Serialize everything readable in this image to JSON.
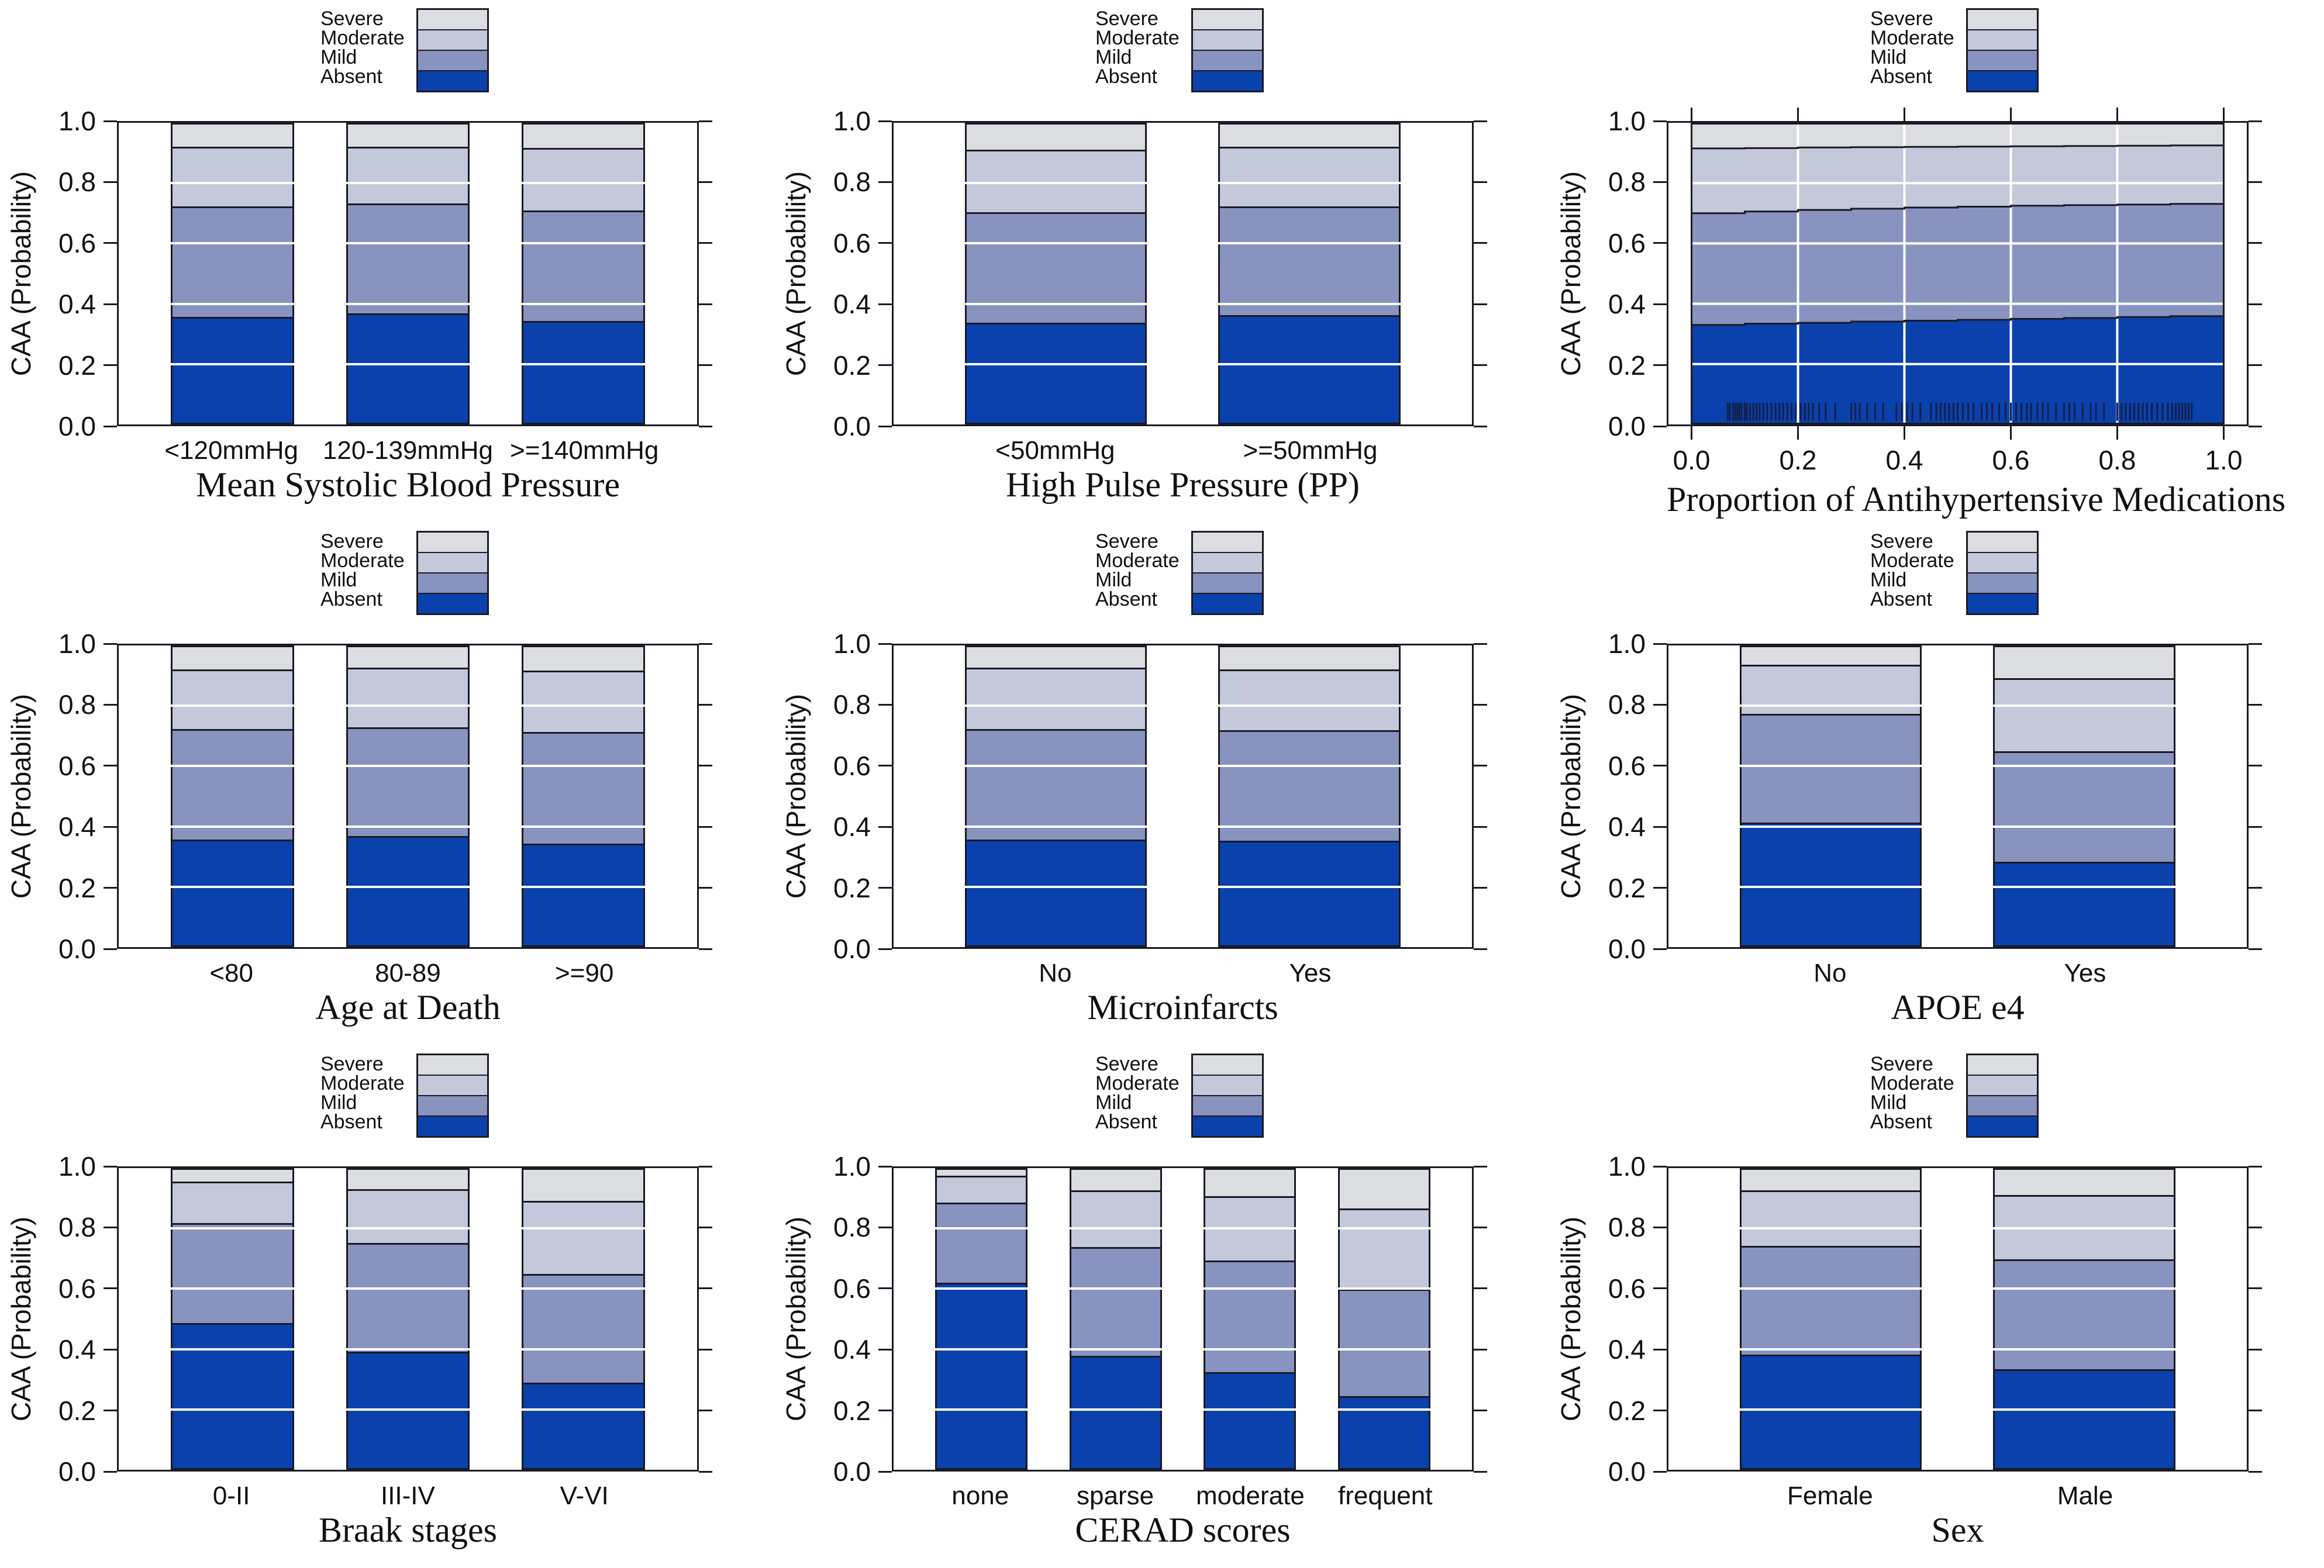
{
  "legend": {
    "labels": [
      "Severe",
      "Moderate",
      "Mild",
      "Absent"
    ]
  },
  "colors": {
    "severe": "#dcdde0",
    "moderate": "#c4c8db",
    "mild": "#8893c0",
    "absent": "#0a41ac",
    "line": "#1a1a24",
    "grid": "#ffffff",
    "rug": "#13204a"
  },
  "y_axis": {
    "label": "CAA (Probability)",
    "tick_labels": [
      "0.0",
      "0.2",
      "0.4",
      "0.6",
      "0.8",
      "1.0"
    ]
  },
  "chart_data": [
    {
      "type": "bar",
      "title": "Mean Systolic Blood Pressure",
      "xlabel": "Mean Systolic Blood Pressure",
      "ylabel": "CAA (Probability)",
      "ylim": [
        0,
        1
      ],
      "series_bottom_to_top": [
        "Absent",
        "Mild",
        "Moderate",
        "Severe"
      ],
      "categories": [
        "<120mmHg",
        "120-139mmHg",
        ">=140mmHg"
      ],
      "cumulative": [
        [
          0.35,
          0.72,
          0.92,
          1.0
        ],
        [
          0.36,
          0.73,
          0.92,
          1.0
        ],
        [
          0.335,
          0.705,
          0.915,
          1.0
        ]
      ]
    },
    {
      "type": "bar",
      "title": "High Pulse Pressure (PP)",
      "xlabel": "High Pulse Pressure (PP)",
      "ylabel": "CAA (Probability)",
      "ylim": [
        0,
        1
      ],
      "series_bottom_to_top": [
        "Absent",
        "Mild",
        "Moderate",
        "Severe"
      ],
      "categories": [
        "<50mmHg",
        ">=50mmHg"
      ],
      "cumulative": [
        [
          0.33,
          0.7,
          0.91,
          1.0
        ],
        [
          0.355,
          0.72,
          0.92,
          1.0
        ]
      ]
    },
    {
      "type": "area",
      "title": "Proportion of Antihypertensive Medications",
      "xlabel": "Proportion of Antihypertensive Medications",
      "ylabel": "CAA (Probability)",
      "ylim": [
        0,
        1
      ],
      "xlim": [
        0,
        1
      ],
      "series_bottom_to_top": [
        "Absent",
        "Mild",
        "Moderate",
        "Severe"
      ],
      "x_tick_labels": [
        "0.0",
        "0.2",
        "0.4",
        "0.6",
        "0.8",
        "1.0"
      ],
      "x": [
        0,
        0.1,
        0.2,
        0.3,
        0.4,
        0.5,
        0.6,
        0.7,
        0.8,
        0.9,
        1.0
      ],
      "absent_top": [
        0.33,
        0.334,
        0.337,
        0.341,
        0.344,
        0.347,
        0.35,
        0.353,
        0.356,
        0.359,
        0.362
      ],
      "mild_top": [
        0.7,
        0.706,
        0.711,
        0.715,
        0.719,
        0.722,
        0.725,
        0.727,
        0.729,
        0.731,
        0.733
      ],
      "moderate_top": [
        0.915,
        0.916,
        0.918,
        0.919,
        0.92,
        0.921,
        0.922,
        0.923,
        0.924,
        0.925,
        0.926
      ],
      "rug_x": [
        0.068,
        0.072,
        0.078,
        0.082,
        0.086,
        0.09,
        0.094,
        0.1,
        0.104,
        0.11,
        0.116,
        0.122,
        0.128,
        0.135,
        0.142,
        0.15,
        0.158,
        0.165,
        0.172,
        0.18,
        0.188,
        0.196,
        0.205,
        0.213,
        0.22,
        0.228,
        0.24,
        0.252,
        0.27,
        0.3,
        0.308,
        0.316,
        0.33,
        0.345,
        0.36,
        0.385,
        0.395,
        0.405,
        0.415,
        0.43,
        0.45,
        0.46,
        0.468,
        0.476,
        0.484,
        0.492,
        0.5,
        0.51,
        0.52,
        0.53,
        0.545,
        0.555,
        0.565,
        0.578,
        0.59,
        0.6,
        0.61,
        0.62,
        0.63,
        0.638,
        0.65,
        0.66,
        0.67,
        0.685,
        0.7,
        0.71,
        0.72,
        0.735,
        0.75,
        0.76,
        0.775,
        0.8,
        0.808,
        0.816,
        0.824,
        0.832,
        0.84,
        0.848,
        0.856,
        0.865,
        0.875,
        0.885,
        0.895,
        0.903,
        0.91,
        0.916,
        0.922,
        0.928,
        0.934,
        0.94
      ]
    },
    {
      "type": "bar",
      "title": "Age at Death",
      "xlabel": "Age at Death",
      "ylabel": "CAA (Probability)",
      "ylim": [
        0,
        1
      ],
      "series_bottom_to_top": [
        "Absent",
        "Mild",
        "Moderate",
        "Severe"
      ],
      "categories": [
        "<80",
        "80-89",
        ">=90"
      ],
      "cumulative": [
        [
          0.35,
          0.72,
          0.92,
          1.0
        ],
        [
          0.36,
          0.725,
          0.925,
          1.0
        ],
        [
          0.335,
          0.71,
          0.915,
          1.0
        ]
      ]
    },
    {
      "type": "bar",
      "title": "Microinfarcts",
      "xlabel": "Microinfarcts",
      "ylabel": "CAA (Probability)",
      "ylim": [
        0,
        1
      ],
      "series_bottom_to_top": [
        "Absent",
        "Mild",
        "Moderate",
        "Severe"
      ],
      "categories": [
        "No",
        "Yes"
      ],
      "cumulative": [
        [
          0.35,
          0.72,
          0.925,
          1.0
        ],
        [
          0.345,
          0.715,
          0.92,
          1.0
        ]
      ]
    },
    {
      "type": "bar",
      "title": "APOE e4",
      "xlabel": "APOE e4",
      "ylabel": "CAA (Probability)",
      "ylim": [
        0,
        1
      ],
      "series_bottom_to_top": [
        "Absent",
        "Mild",
        "Moderate",
        "Severe"
      ],
      "categories": [
        "No",
        "Yes"
      ],
      "cumulative": [
        [
          0.405,
          0.77,
          0.935,
          1.0
        ],
        [
          0.275,
          0.645,
          0.89,
          1.0
        ]
      ]
    },
    {
      "type": "bar",
      "title": "Braak stages",
      "xlabel": "Braak stages",
      "ylabel": "CAA (Probability)",
      "ylim": [
        0,
        1
      ],
      "series_bottom_to_top": [
        "Absent",
        "Mild",
        "Moderate",
        "Severe"
      ],
      "categories": [
        "0-II",
        "III-IV",
        "V-VI"
      ],
      "cumulative": [
        [
          0.48,
          0.815,
          0.955,
          1.0
        ],
        [
          0.385,
          0.75,
          0.93,
          1.0
        ],
        [
          0.28,
          0.645,
          0.89,
          1.0
        ]
      ]
    },
    {
      "type": "bar",
      "title": "CERAD scores",
      "xlabel": "CERAD scores",
      "ylabel": "CAA (Probability)",
      "ylim": [
        0,
        1
      ],
      "series_bottom_to_top": [
        "Absent",
        "Mild",
        "Moderate",
        "Severe"
      ],
      "categories": [
        "none",
        "sparse",
        "moderate",
        "frequent"
      ],
      "cumulative": [
        [
          0.615,
          0.885,
          0.975,
          1.0
        ],
        [
          0.37,
          0.735,
          0.925,
          1.0
        ],
        [
          0.315,
          0.69,
          0.905,
          1.0
        ],
        [
          0.235,
          0.595,
          0.865,
          1.0
        ]
      ]
    },
    {
      "type": "bar",
      "title": "Sex",
      "xlabel": "Sex",
      "ylabel": "CAA (Probability)",
      "ylim": [
        0,
        1
      ],
      "series_bottom_to_top": [
        "Absent",
        "Mild",
        "Moderate",
        "Severe"
      ],
      "categories": [
        "Female",
        "Male"
      ],
      "cumulative": [
        [
          0.375,
          0.74,
          0.925,
          1.0
        ],
        [
          0.325,
          0.695,
          0.91,
          1.0
        ]
      ]
    }
  ]
}
